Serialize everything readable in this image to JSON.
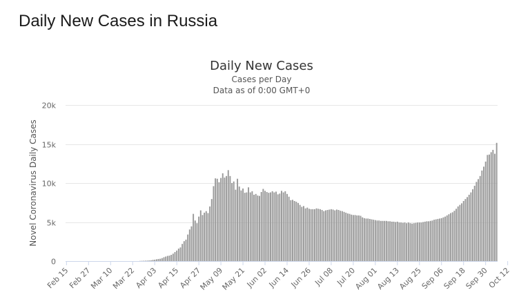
{
  "page": {
    "heading": "Daily New Cases in Russia"
  },
  "chart_data": {
    "type": "bar",
    "title": "Daily New Cases",
    "subtitle_line1": "Cases per Day",
    "subtitle_line2": "Data as of 0:00 GMT+0",
    "xlabel": "",
    "ylabel": "Novel Coronavirus Daily Cases",
    "ylim": [
      0,
      20000
    ],
    "y_ticks": [
      0,
      5000,
      10000,
      15000,
      20000
    ],
    "y_tick_labels": [
      "0",
      "5k",
      "10k",
      "15k",
      "20k"
    ],
    "x_tick_labels": [
      "Feb 15",
      "Feb 27",
      "Mar 10",
      "Mar 22",
      "Apr 03",
      "Apr 15",
      "Apr 27",
      "May 09",
      "May 21",
      "Jun 02",
      "Jun 14",
      "Jun 26",
      "Jul 08",
      "Jul 20",
      "Aug 01",
      "Aug 13",
      "Aug 25",
      "Sep 06",
      "Sep 18",
      "Sep 30",
      "Oct 12"
    ],
    "start_date": "Feb 15",
    "end_date": "Oct 15",
    "grid": true,
    "legend": "none",
    "bar_color": "#999999",
    "values": [
      0,
      0,
      0,
      0,
      0,
      0,
      0,
      0,
      0,
      0,
      0,
      0,
      0,
      0,
      0,
      0,
      0,
      0,
      0,
      0,
      0,
      0,
      0,
      0,
      0,
      0,
      0,
      0,
      0,
      0,
      0,
      0,
      0,
      0,
      0,
      0,
      0,
      0,
      0,
      0,
      20,
      30,
      40,
      50,
      60,
      80,
      100,
      150,
      180,
      230,
      270,
      300,
      380,
      490,
      580,
      660,
      700,
      800,
      950,
      1150,
      1350,
      1600,
      1750,
      2200,
      2550,
      2750,
      3400,
      4050,
      4450,
      6050,
      5200,
      4850,
      5700,
      6500,
      5900,
      6200,
      6400,
      6150,
      7000,
      7950,
      9600,
      10600,
      10550,
      10100,
      10650,
      11250,
      10700,
      10900,
      11650,
      10900,
      10000,
      10200,
      9150,
      10550,
      9550,
      9050,
      9300,
      8750,
      8800,
      9450,
      8800,
      8950,
      8500,
      8600,
      8400,
      8350,
      8850,
      9250,
      9000,
      8850,
      8750,
      8800,
      8950,
      8800,
      8900,
      8550,
      8650,
      9000,
      8800,
      8950,
      8600,
      8250,
      7800,
      7850,
      7700,
      7600,
      7450,
      7200,
      6950,
      7050,
      6750,
      6850,
      6700,
      6650,
      6650,
      6650,
      6750,
      6700,
      6650,
      6550,
      6400,
      6500,
      6550,
      6600,
      6650,
      6600,
      6500,
      6600,
      6550,
      6450,
      6400,
      6300,
      6200,
      6100,
      6050,
      5950,
      5900,
      5900,
      5850,
      5850,
      5800,
      5600,
      5500,
      5450,
      5450,
      5400,
      5350,
      5300,
      5250,
      5200,
      5200,
      5150,
      5150,
      5150,
      5150,
      5100,
      5100,
      5050,
      5050,
      5000,
      5050,
      4950,
      4950,
      4900,
      4950,
      4850,
      4950,
      4850,
      4800,
      4850,
      4900,
      4950,
      4950,
      4950,
      5000,
      5050,
      5100,
      5100,
      5150,
      5200,
      5300,
      5350,
      5400,
      5450,
      5500,
      5600,
      5700,
      5850,
      6000,
      6150,
      6250,
      6450,
      6700,
      7000,
      7200,
      7400,
      7700,
      7950,
      8200,
      8500,
      8800,
      9200,
      9650,
      10150,
      10500,
      10900,
      11600,
      12100,
      12750,
      13600,
      13650,
      13950,
      14250,
      13750,
      15150
    ]
  }
}
